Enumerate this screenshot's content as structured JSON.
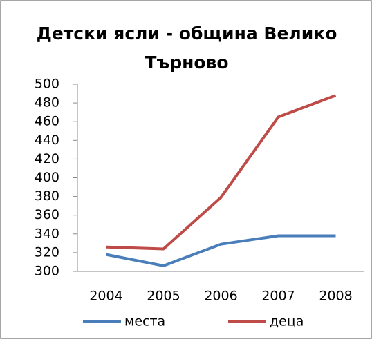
{
  "chart_data": {
    "type": "line",
    "title": "Детски ясли - община Велико Търново",
    "categories": [
      "2004",
      "2005",
      "2006",
      "2007",
      "2008"
    ],
    "series": [
      {
        "name": "места",
        "color": "#4a7ebb",
        "values": [
          318,
          306,
          329,
          338,
          338
        ]
      },
      {
        "name": "деца",
        "color": "#be4b48",
        "values": [
          326,
          324,
          379,
          465,
          488
        ]
      }
    ],
    "ylim": [
      300,
      500
    ],
    "yticks": [
      300,
      320,
      340,
      360,
      380,
      400,
      420,
      440,
      460,
      480,
      500
    ],
    "grid": false,
    "legend": "bottom"
  }
}
